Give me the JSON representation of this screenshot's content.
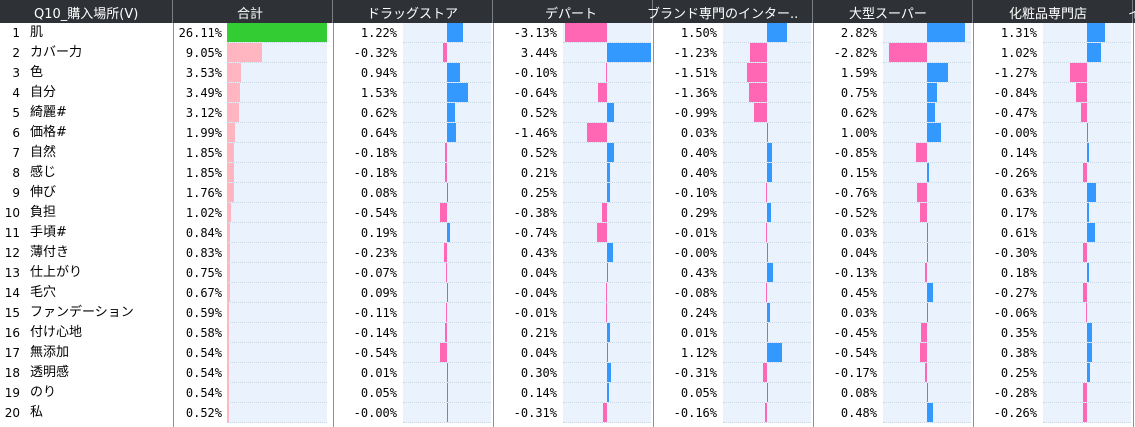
{
  "colors": {
    "header_bg": "#2e3136",
    "total_top": "#33cc33",
    "total_bar": "#ffb6c1",
    "pos": "#3399ff",
    "neg": "#ff66b3",
    "row_band": "#eaf3fd"
  },
  "headers": [
    "Q10_購入場所(V)",
    "合計",
    "ドラッグストア",
    "デパート",
    "ブランド専門のインター..",
    "大型スーパー",
    "化粧品専門店",
    "イ"
  ],
  "columns": [
    "ドラッグストア",
    "デパート",
    "ブランド専門のインター..",
    "大型スーパー",
    "化粧品専門店"
  ],
  "rows": [
    {
      "n": "1",
      "word": "肌",
      "total": "26.11%",
      "tv": 26.11,
      "c": [
        "1.22%",
        "-3.13%",
        "1.50%",
        "2.82%",
        "1.31%"
      ],
      "v": [
        1.22,
        -3.13,
        1.5,
        2.82,
        1.31
      ]
    },
    {
      "n": "2",
      "word": "カバー力",
      "total": "9.05%",
      "tv": 9.05,
      "c": [
        "-0.32%",
        "3.44%",
        "-1.23%",
        "-2.82%",
        "1.02%"
      ],
      "v": [
        -0.32,
        3.44,
        -1.23,
        -2.82,
        1.02
      ]
    },
    {
      "n": "3",
      "word": "色",
      "total": "3.53%",
      "tv": 3.53,
      "c": [
        "0.94%",
        "-0.10%",
        "-1.51%",
        "1.59%",
        "-1.27%"
      ],
      "v": [
        0.94,
        -0.1,
        -1.51,
        1.59,
        -1.27
      ]
    },
    {
      "n": "4",
      "word": "自分",
      "total": "3.49%",
      "tv": 3.49,
      "c": [
        "1.53%",
        "-0.64%",
        "-1.36%",
        "0.75%",
        "-0.84%"
      ],
      "v": [
        1.53,
        -0.64,
        -1.36,
        0.75,
        -0.84
      ]
    },
    {
      "n": "5",
      "word": "綺麗#",
      "total": "3.12%",
      "tv": 3.12,
      "c": [
        "0.62%",
        "0.52%",
        "-0.99%",
        "0.62%",
        "-0.47%"
      ],
      "v": [
        0.62,
        0.52,
        -0.99,
        0.62,
        -0.47
      ]
    },
    {
      "n": "6",
      "word": "価格#",
      "total": "1.99%",
      "tv": 1.99,
      "c": [
        "0.64%",
        "-1.46%",
        "0.03%",
        "1.00%",
        "-0.00%"
      ],
      "v": [
        0.64,
        -1.46,
        0.03,
        1.0,
        -0.0
      ]
    },
    {
      "n": "7",
      "word": "自然",
      "total": "1.85%",
      "tv": 1.85,
      "c": [
        "-0.18%",
        "0.52%",
        "0.40%",
        "-0.85%",
        "0.14%"
      ],
      "v": [
        -0.18,
        0.52,
        0.4,
        -0.85,
        0.14
      ]
    },
    {
      "n": "8",
      "word": "感じ",
      "total": "1.85%",
      "tv": 1.85,
      "c": [
        "-0.18%",
        "0.21%",
        "0.40%",
        "0.15%",
        "-0.26%"
      ],
      "v": [
        -0.18,
        0.21,
        0.4,
        0.15,
        -0.26
      ]
    },
    {
      "n": "9",
      "word": "伸び",
      "total": "1.76%",
      "tv": 1.76,
      "c": [
        "0.08%",
        "0.25%",
        "-0.10%",
        "-0.76%",
        "0.63%"
      ],
      "v": [
        0.08,
        0.25,
        -0.1,
        -0.76,
        0.63
      ]
    },
    {
      "n": "10",
      "word": "負担",
      "total": "1.02%",
      "tv": 1.02,
      "c": [
        "-0.54%",
        "-0.38%",
        "0.29%",
        "-0.52%",
        "0.17%"
      ],
      "v": [
        -0.54,
        -0.38,
        0.29,
        -0.52,
        0.17
      ]
    },
    {
      "n": "11",
      "word": "手頃#",
      "total": "0.84%",
      "tv": 0.84,
      "c": [
        "0.19%",
        "-0.74%",
        "-0.01%",
        "0.03%",
        "0.61%"
      ],
      "v": [
        0.19,
        -0.74,
        -0.01,
        0.03,
        0.61
      ]
    },
    {
      "n": "12",
      "word": "薄付き",
      "total": "0.83%",
      "tv": 0.83,
      "c": [
        "-0.23%",
        "0.43%",
        "-0.00%",
        "0.04%",
        "-0.30%"
      ],
      "v": [
        -0.23,
        0.43,
        -0.0,
        0.04,
        -0.3
      ]
    },
    {
      "n": "13",
      "word": "仕上がり",
      "total": "0.75%",
      "tv": 0.75,
      "c": [
        "-0.07%",
        "0.04%",
        "0.43%",
        "-0.13%",
        "0.18%"
      ],
      "v": [
        -0.07,
        0.04,
        0.43,
        -0.13,
        0.18
      ]
    },
    {
      "n": "14",
      "word": "毛穴",
      "total": "0.67%",
      "tv": 0.67,
      "c": [
        "0.09%",
        "-0.04%",
        "-0.08%",
        "0.45%",
        "-0.27%"
      ],
      "v": [
        0.09,
        -0.04,
        -0.08,
        0.45,
        -0.27
      ]
    },
    {
      "n": "15",
      "word": "ファンデーション",
      "total": "0.59%",
      "tv": 0.59,
      "c": [
        "-0.11%",
        "-0.01%",
        "0.24%",
        "0.03%",
        "-0.06%"
      ],
      "v": [
        -0.11,
        -0.01,
        0.24,
        0.03,
        -0.06
      ]
    },
    {
      "n": "16",
      "word": "付け心地",
      "total": "0.58%",
      "tv": 0.58,
      "c": [
        "-0.14%",
        "0.21%",
        "0.01%",
        "-0.45%",
        "0.35%"
      ],
      "v": [
        -0.14,
        0.21,
        0.01,
        -0.45,
        0.35
      ]
    },
    {
      "n": "17",
      "word": "無添加",
      "total": "0.54%",
      "tv": 0.54,
      "c": [
        "-0.54%",
        "0.04%",
        "1.12%",
        "-0.54%",
        "0.38%"
      ],
      "v": [
        -0.54,
        0.04,
        1.12,
        -0.54,
        0.38
      ]
    },
    {
      "n": "18",
      "word": "透明感",
      "total": "0.54%",
      "tv": 0.54,
      "c": [
        "0.01%",
        "0.30%",
        "-0.31%",
        "-0.17%",
        "0.25%"
      ],
      "v": [
        0.01,
        0.3,
        -0.31,
        -0.17,
        0.25
      ]
    },
    {
      "n": "19",
      "word": "のり",
      "total": "0.54%",
      "tv": 0.54,
      "c": [
        "0.05%",
        "0.14%",
        "0.05%",
        "0.08%",
        "-0.28%"
      ],
      "v": [
        0.05,
        0.14,
        0.05,
        0.08,
        -0.28
      ]
    },
    {
      "n": "20",
      "word": "私",
      "total": "0.52%",
      "tv": 0.52,
      "c": [
        "-0.00%",
        "-0.31%",
        "-0.16%",
        "0.48%",
        "-0.26%"
      ],
      "v": [
        -0.0,
        -0.31,
        -0.16,
        0.48,
        -0.26
      ]
    }
  ]
}
